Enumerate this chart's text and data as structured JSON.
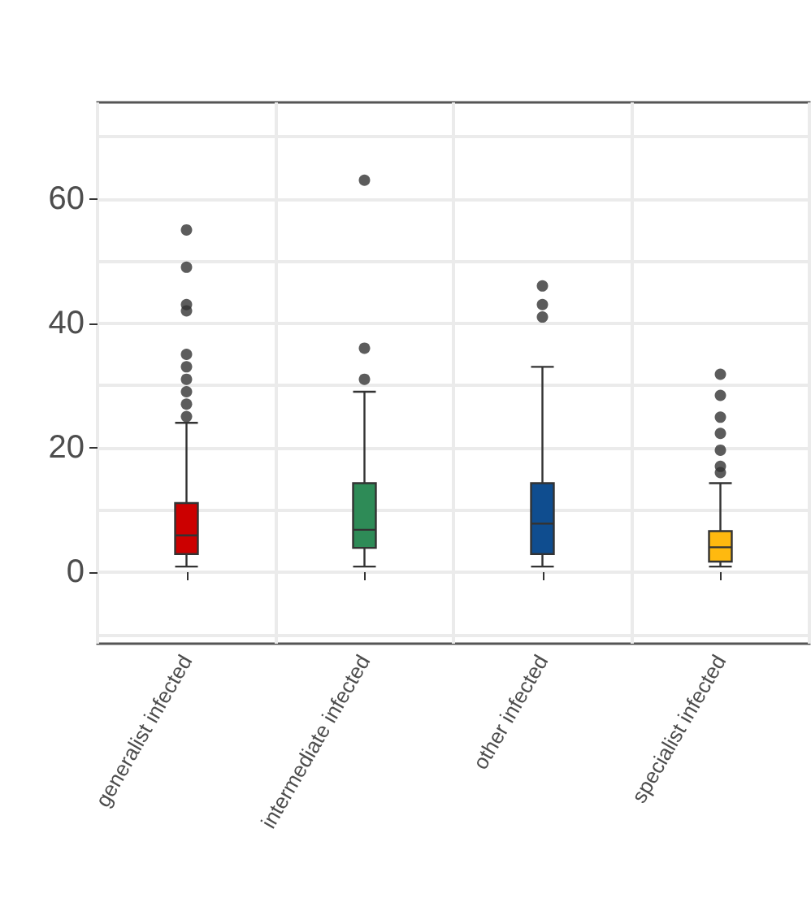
{
  "chart_data": {
    "type": "box",
    "categories": [
      "generalist infected",
      "intermediate infected",
      "other infected",
      "specialist infected"
    ],
    "colors": [
      "#cc0000",
      "#2e8b57",
      "#0f4d8f",
      "#ffb90f"
    ],
    "boxes": [
      {
        "low": 0.9,
        "q1": 2.9,
        "median": 5.9,
        "q3": 11.1,
        "high": 24,
        "outliers": [
          25,
          27,
          29,
          31,
          33,
          35,
          42,
          43,
          49,
          55
        ]
      },
      {
        "low": 0.9,
        "q1": 3.9,
        "median": 6.8,
        "q3": 14.3,
        "high": 29,
        "outliers": [
          31,
          36,
          63
        ]
      },
      {
        "low": 0.9,
        "q1": 2.9,
        "median": 7.8,
        "q3": 14.3,
        "high": 33,
        "outliers": [
          41,
          43,
          46
        ]
      },
      {
        "low": 0.9,
        "q1": 1.7,
        "median": 4,
        "q3": 6.6,
        "high": 14.3,
        "outliers": [
          16,
          17,
          19.6,
          22.3,
          24.9,
          28.4,
          31.8
        ]
      }
    ],
    "ylim": [
      -11.5,
      75.5
    ],
    "yticks": [
      {
        "value": -10,
        "label": null
      },
      0,
      {
        "value": 10,
        "label": null
      },
      20,
      {
        "value": 30,
        "label": null
      },
      40,
      {
        "value": 50,
        "label": null
      },
      60,
      {
        "value": 70,
        "label": null
      }
    ],
    "grid": true
  }
}
